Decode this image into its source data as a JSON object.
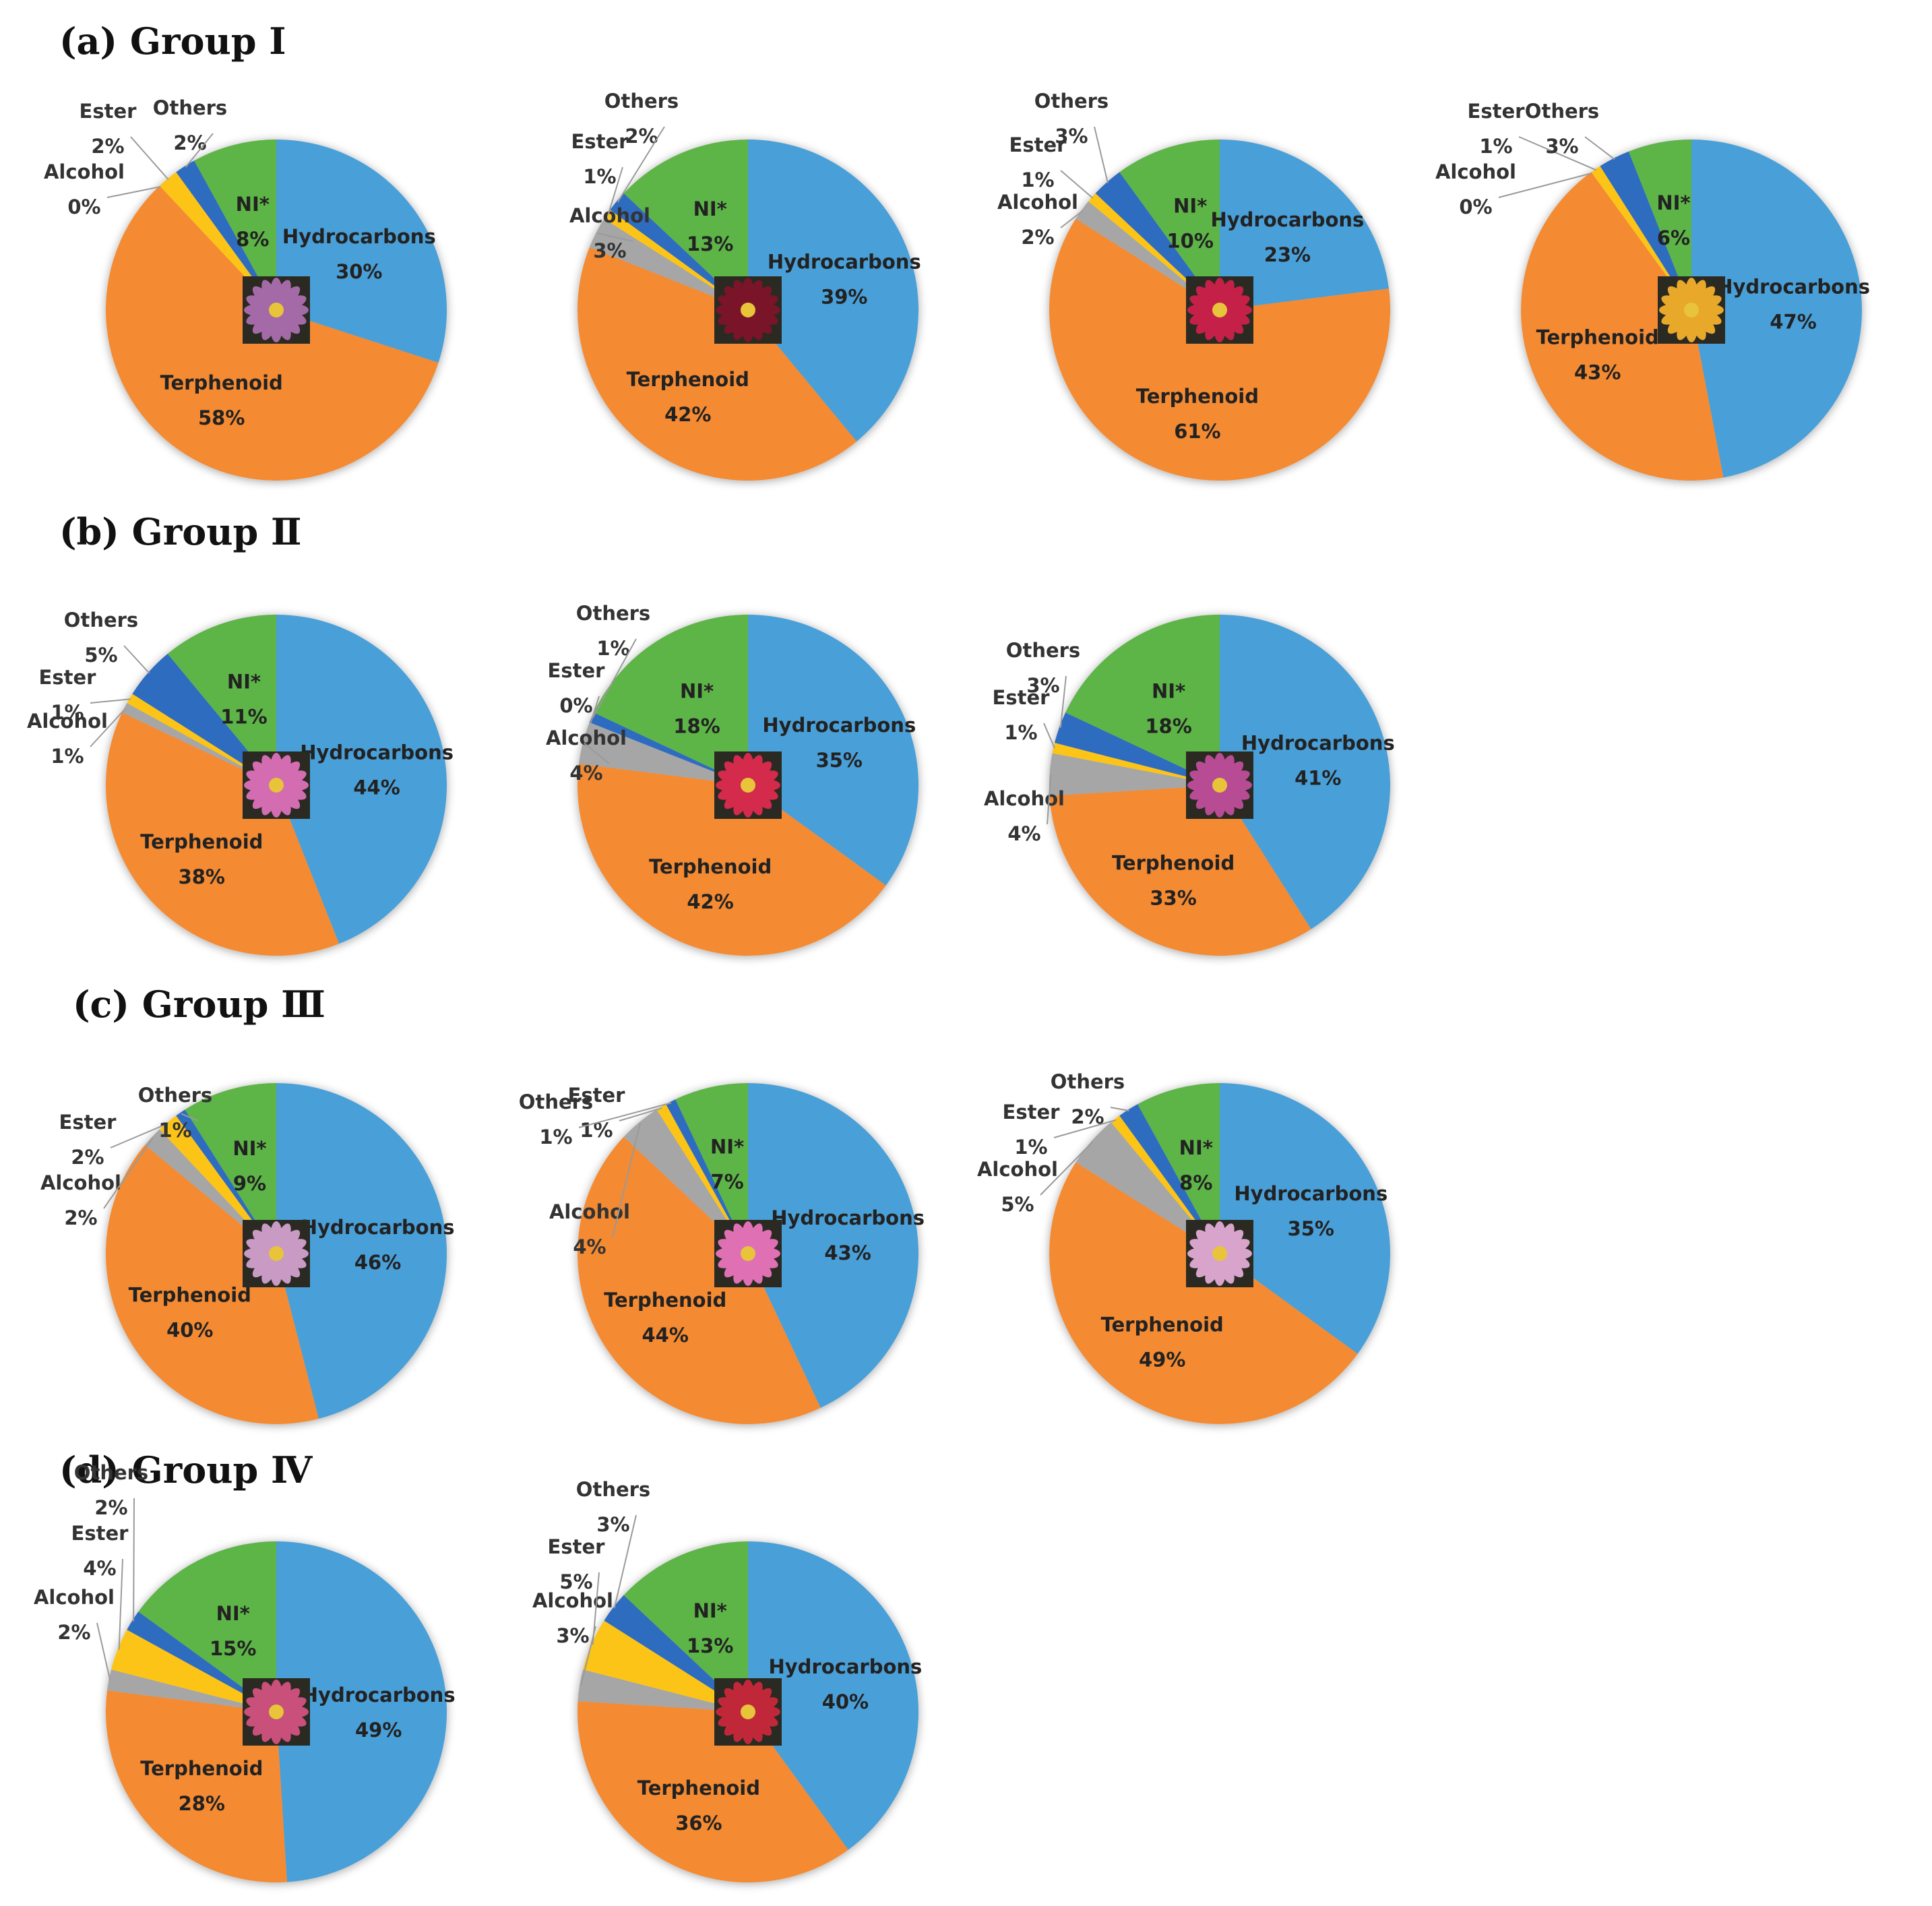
{
  "palette": {
    "Hydrocarbons": "#4a9fd8",
    "Terphenoid": "#f48a33",
    "Alcohol": "#a6a6a6",
    "Ester": "#fcc419",
    "Others": "#2f6cc0",
    "NI*": "#5db446"
  },
  "groups": [
    {
      "title": "(a) Group Ⅰ"
    },
    {
      "title": "(b) Group Ⅱ"
    },
    {
      "title": "(c) Group Ⅲ"
    },
    {
      "title": "(d) Group Ⅳ"
    }
  ],
  "chart_data": [
    {
      "type": "pie",
      "group": "(a) Group Ⅰ",
      "image": "flower-photo-purple",
      "image_color": "#a46aa8",
      "slices": [
        {
          "name": "Hydrocarbons",
          "value": 30,
          "label": "30%"
        },
        {
          "name": "Terphenoid",
          "value": 58,
          "label": "58%"
        },
        {
          "name": "Alcohol",
          "value": 0,
          "label": "0%"
        },
        {
          "name": "Ester",
          "value": 2,
          "label": "2%"
        },
        {
          "name": "Others",
          "value": 2,
          "label": "2%"
        },
        {
          "name": "NI*",
          "value": 8,
          "label": "8%"
        }
      ]
    },
    {
      "type": "pie",
      "group": "(a) Group Ⅰ",
      "image": "flower-photo-dark-red",
      "image_color": "#7a1428",
      "slices": [
        {
          "name": "Hydrocarbons",
          "value": 39,
          "label": "39%"
        },
        {
          "name": "Terphenoid",
          "value": 42,
          "label": "42%"
        },
        {
          "name": "Alcohol",
          "value": 3,
          "label": "3%"
        },
        {
          "name": "Ester",
          "value": 1,
          "label": "1%"
        },
        {
          "name": "Others",
          "value": 2,
          "label": "2%"
        },
        {
          "name": "NI*",
          "value": 13,
          "label": "13%"
        }
      ]
    },
    {
      "type": "pie",
      "group": "(a) Group Ⅰ",
      "image": "flower-photo-red",
      "image_color": "#c42048",
      "slices": [
        {
          "name": "Hydrocarbons",
          "value": 23,
          "label": "23%"
        },
        {
          "name": "Terphenoid",
          "value": 61,
          "label": "61%"
        },
        {
          "name": "Alcohol",
          "value": 2,
          "label": "2%"
        },
        {
          "name": "Ester",
          "value": 1,
          "label": "1%"
        },
        {
          "name": "Others",
          "value": 3,
          "label": "3%"
        },
        {
          "name": "NI*",
          "value": 10,
          "label": "10%"
        }
      ]
    },
    {
      "type": "pie",
      "group": "(a) Group Ⅰ",
      "image": "flower-photo-yellow",
      "image_color": "#e8a82a",
      "slices": [
        {
          "name": "Hydrocarbons",
          "value": 47,
          "label": "47%"
        },
        {
          "name": "Terphenoid",
          "value": 43,
          "label": "43%"
        },
        {
          "name": "Alcohol",
          "value": 0,
          "label": "0%"
        },
        {
          "name": "Ester",
          "value": 1,
          "label": "1%"
        },
        {
          "name": "Others",
          "value": 3,
          "label": "3%"
        },
        {
          "name": "NI*",
          "value": 6,
          "label": "6%"
        }
      ]
    },
    {
      "type": "pie",
      "group": "(b) Group Ⅱ",
      "image": "flower-photo-pink",
      "image_color": "#d36cb0",
      "slices": [
        {
          "name": "Hydrocarbons",
          "value": 44,
          "label": "44%"
        },
        {
          "name": "Terphenoid",
          "value": 38,
          "label": "38%"
        },
        {
          "name": "Alcohol",
          "value": 1,
          "label": "1%"
        },
        {
          "name": "Ester",
          "value": 1,
          "label": "1%"
        },
        {
          "name": "Others",
          "value": 5,
          "label": "5%"
        },
        {
          "name": "NI*",
          "value": 11,
          "label": "11%"
        }
      ]
    },
    {
      "type": "pie",
      "group": "(b) Group Ⅱ",
      "image": "flower-photo-crimson",
      "image_color": "#d42a4c",
      "slices": [
        {
          "name": "Hydrocarbons",
          "value": 35,
          "label": "35%"
        },
        {
          "name": "Terphenoid",
          "value": 42,
          "label": "42%"
        },
        {
          "name": "Alcohol",
          "value": 4,
          "label": "4%"
        },
        {
          "name": "Ester",
          "value": 0,
          "label": "0%"
        },
        {
          "name": "Others",
          "value": 1,
          "label": "1%"
        },
        {
          "name": "NI*",
          "value": 18,
          "label": "18%"
        }
      ]
    },
    {
      "type": "pie",
      "group": "(b) Group Ⅱ",
      "image": "flower-photo-magenta",
      "image_color": "#b84c94",
      "slices": [
        {
          "name": "Hydrocarbons",
          "value": 41,
          "label": "41%"
        },
        {
          "name": "Terphenoid",
          "value": 33,
          "label": "33%"
        },
        {
          "name": "Alcohol",
          "value": 4,
          "label": "4%"
        },
        {
          "name": "Ester",
          "value": 1,
          "label": "1%"
        },
        {
          "name": "Others",
          "value": 3,
          "label": "3%"
        },
        {
          "name": "NI*",
          "value": 18,
          "label": "18%"
        }
      ]
    },
    {
      "type": "pie",
      "group": "(c) Group Ⅲ",
      "image": "flower-photo-lilac",
      "image_color": "#c89ac4",
      "slices": [
        {
          "name": "Hydrocarbons",
          "value": 46,
          "label": "46%"
        },
        {
          "name": "Terphenoid",
          "value": 40,
          "label": "40%"
        },
        {
          "name": "Alcohol",
          "value": 2,
          "label": "2%"
        },
        {
          "name": "Ester",
          "value": 2,
          "label": "2%"
        },
        {
          "name": "Others",
          "value": 1,
          "label": "1%"
        },
        {
          "name": "NI*",
          "value": 9,
          "label": "9%"
        }
      ]
    },
    {
      "type": "pie",
      "group": "(c) Group Ⅲ",
      "image": "flower-photo-rose-pink",
      "image_color": "#e070b4",
      "slices": [
        {
          "name": "Hydrocarbons",
          "value": 43,
          "label": "43%"
        },
        {
          "name": "Terphenoid",
          "value": 44,
          "label": "44%"
        },
        {
          "name": "Alcohol",
          "value": 4,
          "label": "4%"
        },
        {
          "name": "Ester",
          "value": 1,
          "label": "1%"
        },
        {
          "name": "Others",
          "value": 1,
          "label": "1%"
        },
        {
          "name": "NI*",
          "value": 7,
          "label": "7%"
        }
      ]
    },
    {
      "type": "pie",
      "group": "(c) Group Ⅲ",
      "image": "flower-photo-light-pink",
      "image_color": "#d8a4cc",
      "slices": [
        {
          "name": "Hydrocarbons",
          "value": 35,
          "label": "35%"
        },
        {
          "name": "Terphenoid",
          "value": 49,
          "label": "49%"
        },
        {
          "name": "Alcohol",
          "value": 5,
          "label": "5%"
        },
        {
          "name": "Ester",
          "value": 1,
          "label": "1%"
        },
        {
          "name": "Others",
          "value": 2,
          "label": "2%"
        },
        {
          "name": "NI*",
          "value": 8,
          "label": "8%"
        }
      ]
    },
    {
      "type": "pie",
      "group": "(d) Group Ⅳ",
      "image": "flower-photo-pink-cluster",
      "image_color": "#c8507a",
      "slices": [
        {
          "name": "Hydrocarbons",
          "value": 49,
          "label": "49%"
        },
        {
          "name": "Terphenoid",
          "value": 28,
          "label": "28%"
        },
        {
          "name": "Alcohol",
          "value": 2,
          "label": "2%"
        },
        {
          "name": "Ester",
          "value": 4,
          "label": "4%"
        },
        {
          "name": "Others",
          "value": 2,
          "label": "2%"
        },
        {
          "name": "NI*",
          "value": 15,
          "label": "15%"
        }
      ]
    },
    {
      "type": "pie",
      "group": "(d) Group Ⅳ",
      "image": "flower-photo-red-yellow",
      "image_color": "#c0283a",
      "slices": [
        {
          "name": "Hydrocarbons",
          "value": 40,
          "label": "40%"
        },
        {
          "name": "Terphenoid",
          "value": 36,
          "label": "36%"
        },
        {
          "name": "Alcohol",
          "value": 3,
          "label": "3%"
        },
        {
          "name": "Ester",
          "value": 5,
          "label": "5%"
        },
        {
          "name": "Others",
          "value": 3,
          "label": "3%"
        },
        {
          "name": "NI*",
          "value": 13,
          "label": "13%"
        }
      ]
    }
  ]
}
